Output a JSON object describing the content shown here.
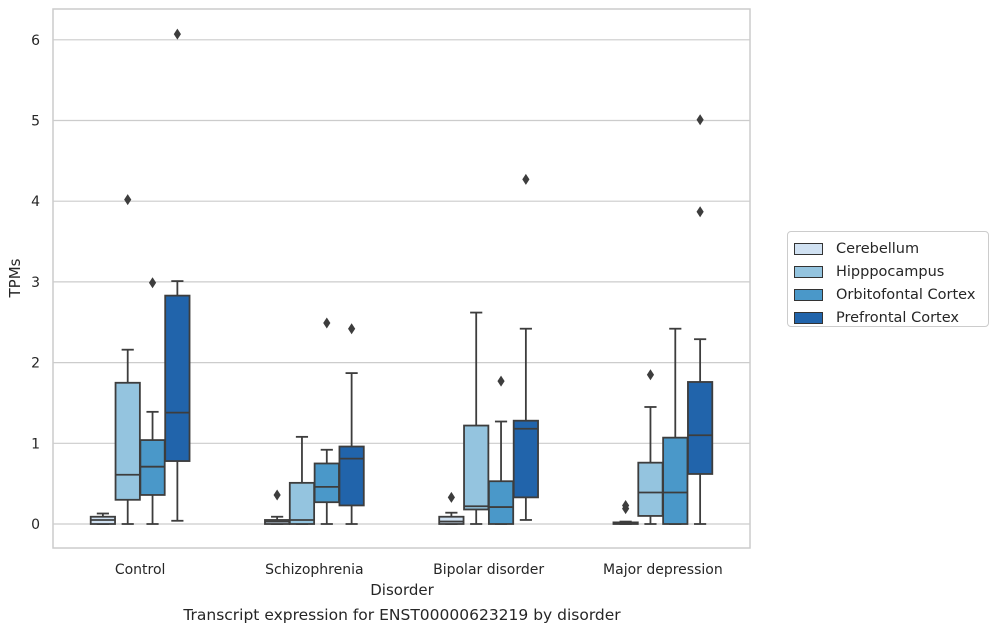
{
  "chart_data": {
    "type": "box",
    "title": "",
    "xlabel": "Disorder",
    "ylabel": "TPMs",
    "ylim": [
      -0.3,
      6.4
    ],
    "yticks": [
      0,
      1,
      2,
      3,
      4,
      5,
      6
    ],
    "grid": "horizontal",
    "legend_position": "right",
    "caption": "Transcript expression for ENST00000623219 by disorder",
    "categories": [
      "Control",
      "Schizophrenia",
      "Bipolar disorder",
      "Major depression"
    ],
    "series": [
      {
        "name": "Cerebellum",
        "color": "#d0e1f2",
        "boxes": [
          {
            "whislo": 0.0,
            "q1": 0.0,
            "med": 0.05,
            "q3": 0.09,
            "whishi": 0.13,
            "fliers": []
          },
          {
            "whislo": 0.0,
            "q1": 0.0,
            "med": 0.03,
            "q3": 0.05,
            "whishi": 0.09,
            "fliers": [
              0.36
            ]
          },
          {
            "whislo": 0.0,
            "q1": 0.0,
            "med": 0.03,
            "q3": 0.09,
            "whishi": 0.14,
            "fliers": [
              0.33
            ]
          },
          {
            "whislo": 0.0,
            "q1": 0.0,
            "med": 0.01,
            "q3": 0.02,
            "whishi": 0.03,
            "fliers": [
              0.19,
              0.23
            ]
          }
        ]
      },
      {
        "name": "Hipppocampus",
        "color": "#94c4df",
        "boxes": [
          {
            "whislo": 0.0,
            "q1": 0.3,
            "med": 0.61,
            "q3": 1.75,
            "whishi": 2.16,
            "fliers": [
              4.02
            ]
          },
          {
            "whislo": 0.0,
            "q1": 0.0,
            "med": 0.05,
            "q3": 0.51,
            "whishi": 1.08,
            "fliers": []
          },
          {
            "whislo": 0.0,
            "q1": 0.18,
            "med": 0.22,
            "q3": 1.22,
            "whishi": 2.62,
            "fliers": []
          },
          {
            "whislo": 0.0,
            "q1": 0.1,
            "med": 0.39,
            "q3": 0.76,
            "whishi": 1.45,
            "fliers": [
              1.85
            ]
          }
        ]
      },
      {
        "name": "Orbitofontal Cortex",
        "color": "#4a98c9",
        "boxes": [
          {
            "whislo": 0.0,
            "q1": 0.36,
            "med": 0.71,
            "q3": 1.04,
            "whishi": 1.39,
            "fliers": [
              2.99
            ]
          },
          {
            "whislo": 0.0,
            "q1": 0.27,
            "med": 0.46,
            "q3": 0.75,
            "whishi": 0.92,
            "fliers": [
              2.49
            ]
          },
          {
            "whislo": 0.0,
            "q1": 0.0,
            "med": 0.21,
            "q3": 0.53,
            "whishi": 1.27,
            "fliers": [
              1.77
            ]
          },
          {
            "whislo": 0.0,
            "q1": 0.0,
            "med": 0.39,
            "q3": 1.07,
            "whishi": 2.42,
            "fliers": []
          }
        ]
      },
      {
        "name": "Prefrontal Cortex",
        "color": "#2164ab",
        "boxes": [
          {
            "whislo": 0.04,
            "q1": 0.78,
            "med": 1.38,
            "q3": 2.83,
            "whishi": 3.01,
            "fliers": [
              6.07
            ]
          },
          {
            "whislo": 0.0,
            "q1": 0.23,
            "med": 0.81,
            "q3": 0.96,
            "whishi": 1.87,
            "fliers": [
              2.42
            ]
          },
          {
            "whislo": 0.05,
            "q1": 0.33,
            "med": 1.18,
            "q3": 1.28,
            "whishi": 2.42,
            "fliers": [
              4.27
            ]
          },
          {
            "whislo": 0.0,
            "q1": 0.62,
            "med": 1.1,
            "q3": 1.76,
            "whishi": 2.29,
            "fliers": [
              3.87,
              5.01
            ]
          }
        ]
      }
    ]
  }
}
